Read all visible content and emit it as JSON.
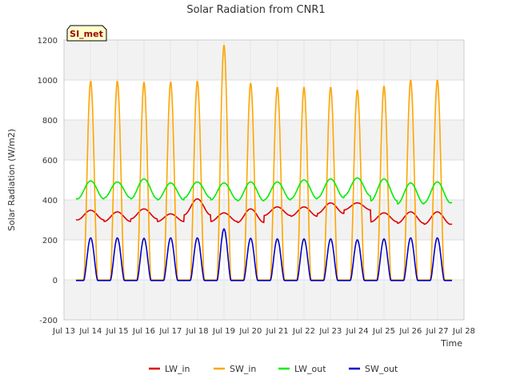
{
  "chart_data": {
    "type": "line",
    "title": "Solar Radiation from CNR1",
    "xlabel": "Time",
    "ylabel": "Solar Radiation (W/m2)",
    "badge": "SI_met",
    "ylim": [
      -200,
      1200
    ],
    "yticks": [
      -200,
      0,
      200,
      400,
      600,
      800,
      1000,
      1200
    ],
    "xlim": [
      "Jul 13",
      "Jul 28"
    ],
    "xticks": [
      "Jul 13",
      "Jul 14",
      "Jul 15",
      "Jul 16",
      "Jul 17",
      "Jul 18",
      "Jul 19",
      "Jul 20",
      "Jul 21",
      "Jul 22",
      "Jul 23",
      "Jul 24",
      "Jul 25",
      "Jul 26",
      "Jul 27",
      "Jul 28"
    ],
    "grid": true,
    "legend_position": "bottom",
    "days": [
      "Jul 14",
      "Jul 15",
      "Jul 16",
      "Jul 17",
      "Jul 18",
      "Jul 19",
      "Jul 20",
      "Jul 21",
      "Jul 22",
      "Jul 23",
      "Jul 24",
      "Jul 25",
      "Jul 26",
      "Jul 27"
    ],
    "series": [
      {
        "name": "LW_in",
        "color": "#dd0000",
        "daily_min": [
          300,
          292,
          305,
          292,
          325,
          292,
          287,
          322,
          318,
          332,
          350,
          290,
          283,
          278
        ],
        "daily_max": [
          348,
          340,
          355,
          330,
          405,
          335,
          355,
          365,
          365,
          385,
          385,
          335,
          340,
          340
        ]
      },
      {
        "name": "SW_in",
        "color": "#ffa500",
        "daily_peak": [
          995,
          995,
          990,
          990,
          995,
          1175,
          985,
          965,
          965,
          965,
          950,
          970,
          1000,
          1000
        ],
        "night_value": 0
      },
      {
        "name": "LW_out",
        "color": "#00ee00",
        "daily_min": [
          405,
          410,
          405,
          400,
          410,
          400,
          395,
          400,
          405,
          410,
          420,
          395,
          380,
          385
        ],
        "daily_max": [
          495,
          490,
          505,
          485,
          490,
          485,
          490,
          490,
          500,
          505,
          510,
          505,
          485,
          490
        ]
      },
      {
        "name": "SW_out",
        "color": "#0000cc",
        "daily_peak": [
          210,
          210,
          208,
          210,
          210,
          255,
          208,
          205,
          205,
          205,
          200,
          205,
          210,
          210
        ],
        "night_value": -3
      }
    ]
  }
}
